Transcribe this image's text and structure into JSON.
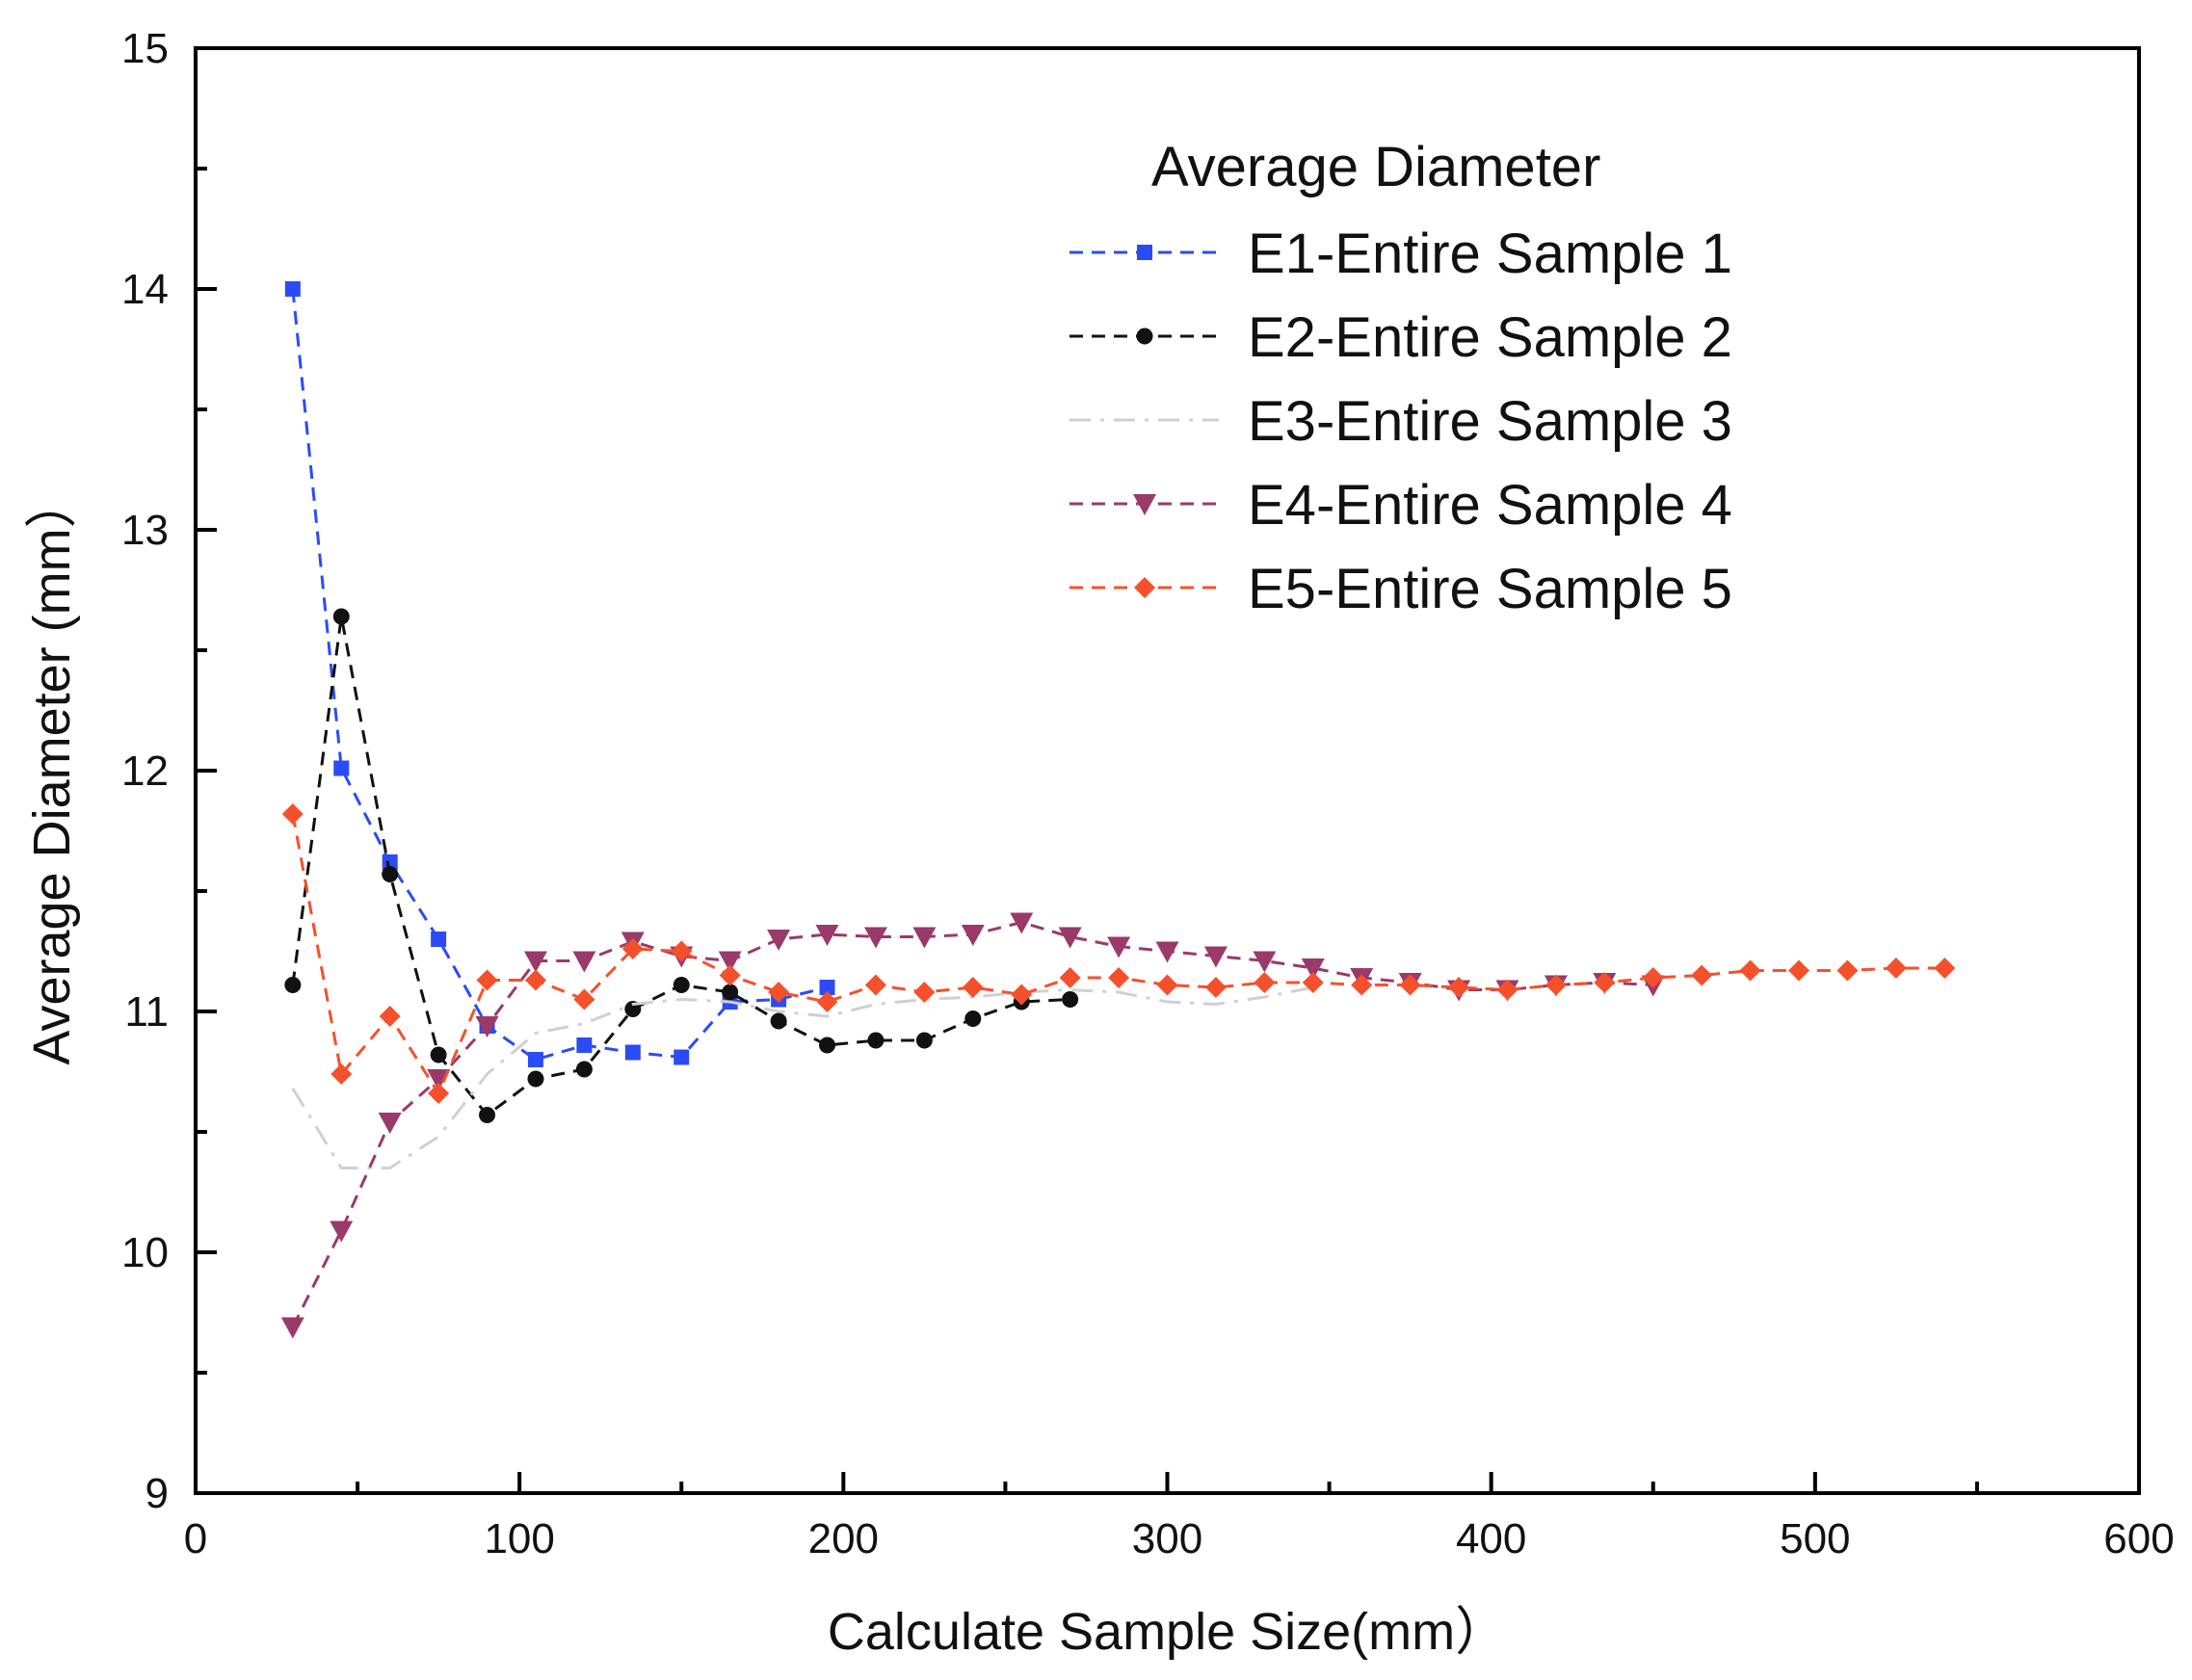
{
  "chart_data": {
    "type": "line",
    "title": "",
    "xlabel": "Calculate Sample Size(mm）",
    "ylabel": "Average Diameter (mm）",
    "xlim": [
      0,
      600
    ],
    "ylim": [
      9,
      15
    ],
    "xticks": [
      0,
      100,
      200,
      300,
      400,
      500,
      600
    ],
    "yticks": [
      9,
      10,
      11,
      12,
      13,
      14,
      15
    ],
    "grid": false,
    "legend_title": "Average Diameter",
    "legend_position": "top-right",
    "series": [
      {
        "name": "E1-Entire Sample 1",
        "color": "#2b4cf5",
        "marker": "square",
        "dash": "dashed",
        "x": [
          30,
          45,
          60,
          75,
          90,
          105,
          120,
          135,
          150,
          165,
          180,
          195
        ],
        "y": [
          14.0,
          12.01,
          11.62,
          11.3,
          10.94,
          10.8,
          10.86,
          10.83,
          10.81,
          11.04,
          11.05,
          11.1
        ]
      },
      {
        "name": "E2-Entire Sample 2",
        "color": "#111111",
        "marker": "circle",
        "dash": "dashed",
        "x": [
          30,
          45,
          60,
          75,
          90,
          105,
          120,
          135,
          150,
          165,
          180,
          195,
          210,
          225,
          240,
          255,
          270
        ],
        "y": [
          11.11,
          12.64,
          11.57,
          10.82,
          10.57,
          10.72,
          10.76,
          11.01,
          11.11,
          11.08,
          10.96,
          10.86,
          10.88,
          10.88,
          10.97,
          11.04,
          11.05
        ]
      },
      {
        "name": "E3-Entire Sample 3",
        "color": "#d0d0d0",
        "marker": "none",
        "dash": "dashdot",
        "x": [
          30,
          45,
          60,
          75,
          90,
          105,
          120,
          135,
          150,
          165,
          180,
          195,
          210,
          225,
          240,
          255,
          270,
          285,
          300,
          315,
          330,
          345
        ],
        "y": [
          10.68,
          10.35,
          10.35,
          10.48,
          10.74,
          10.91,
          10.95,
          11.03,
          11.05,
          11.04,
          11.0,
          10.98,
          11.03,
          11.05,
          11.06,
          11.08,
          11.09,
          11.08,
          11.04,
          11.03,
          11.06,
          11.1
        ]
      },
      {
        "name": "E4-Entire Sample 4",
        "color": "#9a3a6a",
        "marker": "triangle-down",
        "dash": "dashed",
        "x": [
          30,
          45,
          60,
          75,
          90,
          105,
          120,
          135,
          150,
          165,
          180,
          195,
          210,
          225,
          240,
          255,
          270,
          285,
          300,
          315,
          330,
          345,
          360,
          375,
          390,
          405,
          420,
          435,
          450
        ],
        "y": [
          9.69,
          10.09,
          10.54,
          10.72,
          10.94,
          11.21,
          11.21,
          11.29,
          11.23,
          11.21,
          11.3,
          11.32,
          11.31,
          11.31,
          11.32,
          11.37,
          11.31,
          11.27,
          11.25,
          11.23,
          11.21,
          11.18,
          11.14,
          11.12,
          11.09,
          11.09,
          11.11,
          11.12,
          11.11
        ]
      },
      {
        "name": "E5-Entire Sample 5",
        "color": "#f5502c",
        "marker": "diamond",
        "dash": "dashed",
        "x": [
          30,
          45,
          60,
          75,
          90,
          105,
          120,
          135,
          150,
          165,
          180,
          195,
          210,
          225,
          240,
          255,
          270,
          285,
          300,
          315,
          330,
          345,
          360,
          375,
          390,
          405,
          420,
          435,
          450,
          465,
          480,
          495,
          510,
          525,
          540
        ],
        "y": [
          11.82,
          10.74,
          10.98,
          10.66,
          11.13,
          11.13,
          11.05,
          11.26,
          11.25,
          11.15,
          11.08,
          11.04,
          11.11,
          11.08,
          11.1,
          11.07,
          11.14,
          11.14,
          11.11,
          11.1,
          11.12,
          11.12,
          11.11,
          11.11,
          11.1,
          11.09,
          11.11,
          11.12,
          11.14,
          11.15,
          11.17,
          11.17,
          11.17,
          11.18,
          11.18
        ]
      }
    ]
  }
}
